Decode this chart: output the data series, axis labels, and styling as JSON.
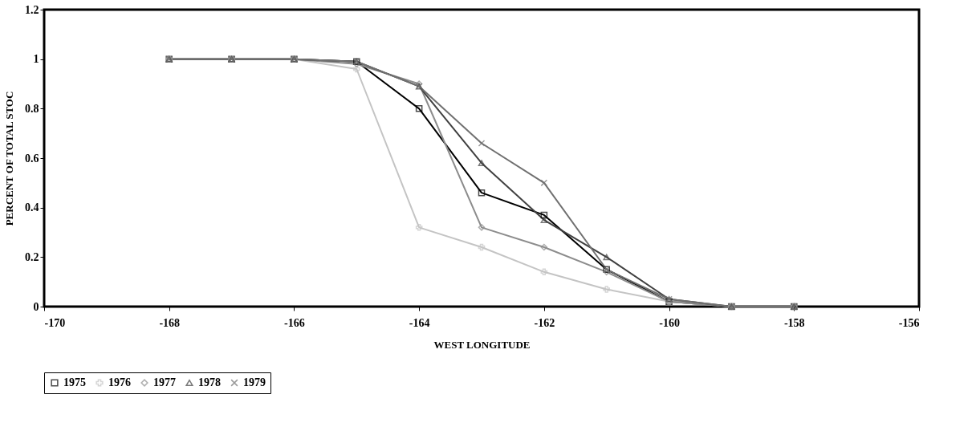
{
  "chart_data": {
    "type": "line",
    "xlabel": "WEST LONGITUDE",
    "ylabel": "PERCENT OF TOTAL STOC",
    "x": [
      -168,
      -167,
      -166,
      -165,
      -164,
      -163,
      -162,
      -161,
      -160,
      -159,
      -158
    ],
    "series": [
      {
        "name": "1975",
        "color": "#000000",
        "marker": "square",
        "values": [
          1,
          1,
          1,
          0.99,
          0.8,
          0.46,
          0.37,
          0.15,
          0.02,
          0,
          0
        ]
      },
      {
        "name": "1976",
        "color": "#c4c4c4",
        "marker": "cross",
        "values": [
          1,
          1,
          1,
          0.96,
          0.32,
          0.24,
          0.14,
          0.07,
          0.02,
          0,
          0
        ]
      },
      {
        "name": "1977",
        "color": "#8c8c8c",
        "marker": "diamond",
        "values": [
          1,
          1,
          1,
          0.98,
          0.9,
          0.32,
          0.24,
          0.14,
          0.02,
          0,
          0
        ]
      },
      {
        "name": "1978",
        "color": "#404040",
        "marker": "triangle",
        "values": [
          1,
          1,
          1,
          0.99,
          0.89,
          0.58,
          0.35,
          0.2,
          0.03,
          0,
          0
        ]
      },
      {
        "name": "1979",
        "color": "#707070",
        "marker": "x",
        "values": [
          1,
          1,
          1,
          0.99,
          0.89,
          0.66,
          0.5,
          0.15,
          0.03,
          0,
          0
        ]
      }
    ],
    "xlim": [
      -170,
      -156
    ],
    "xticks": [
      -170,
      -168,
      -166,
      -164,
      -162,
      -160,
      -158,
      -156
    ],
    "ylim": [
      0,
      1.2
    ],
    "yticks": [
      0,
      0.2,
      0.4,
      0.6,
      0.8,
      1,
      1.2
    ],
    "grid": false,
    "legend": "bottom",
    "line_style": "solid"
  }
}
